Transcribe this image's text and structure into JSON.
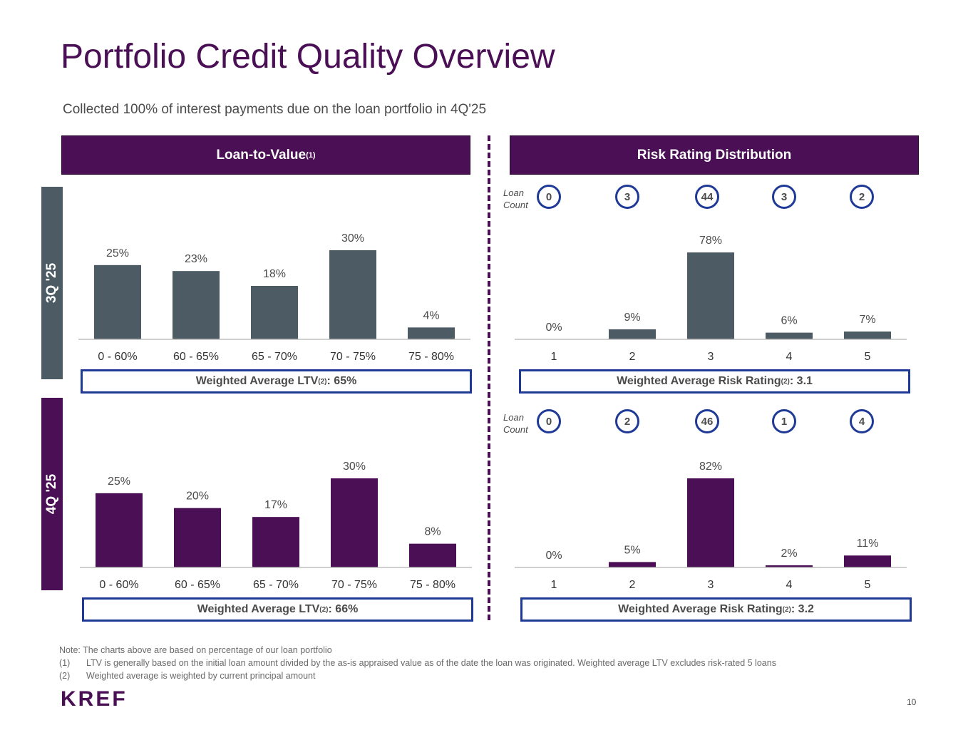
{
  "title": "Portfolio Credit Quality Overview",
  "subtitle": "Collected 100% of interest payments due on the loan portfolio in 4Q'25",
  "headers": {
    "ltv": {
      "text": "Loan-to-Value",
      "sup": "(1)"
    },
    "risk": {
      "text": "Risk Rating Distribution"
    }
  },
  "periods": {
    "q3": "3Q '25",
    "q4": "4Q '25"
  },
  "colors": {
    "brand": "#4a0f55",
    "q3_bar": "#4d5b65",
    "q4_bar": "#4a0f55",
    "box_border": "#1e3a96"
  },
  "loan_count_label": {
    "line1": "Loan",
    "line2": "Count"
  },
  "loan_counts": {
    "q3": [
      "0",
      "3",
      "44",
      "3",
      "2"
    ],
    "q4": [
      "0",
      "2",
      "46",
      "1",
      "4"
    ]
  },
  "weighted": {
    "ltv_q3": {
      "pre": "Weighted Average LTV",
      "sup": "(2)",
      "post": ": 65%"
    },
    "ltv_q4": {
      "pre": "Weighted Average LTV",
      "sup": "(2)",
      "post": ": 66%"
    },
    "risk_q3": {
      "pre": "Weighted Average Risk Rating",
      "sup": "(2)",
      "post": ": 3.1"
    },
    "risk_q4": {
      "pre": "Weighted Average Risk Rating",
      "sup": "(2)",
      "post": ": 3.2"
    }
  },
  "chart_data": [
    {
      "id": "ltv_q3",
      "type": "bar",
      "title": "Loan-to-Value 3Q '25",
      "categories": [
        "0 - 60%",
        "60 - 65%",
        "65 - 70%",
        "70 - 75%",
        "75 - 80%"
      ],
      "values": [
        25,
        23,
        18,
        30,
        4
      ],
      "labels": [
        "25%",
        "23%",
        "18%",
        "30%",
        "4%"
      ],
      "unit": "%",
      "ylim": [
        0,
        30
      ]
    },
    {
      "id": "risk_q3",
      "type": "bar",
      "title": "Risk Rating Distribution 3Q '25",
      "categories": [
        "1",
        "2",
        "3",
        "4",
        "5"
      ],
      "values": [
        0,
        9,
        78,
        6,
        7
      ],
      "labels": [
        "0%",
        "9%",
        "78%",
        "6%",
        "7%"
      ],
      "unit": "%",
      "ylim": [
        0,
        80
      ]
    },
    {
      "id": "ltv_q4",
      "type": "bar",
      "title": "Loan-to-Value 4Q '25",
      "categories": [
        "0 - 60%",
        "60 - 65%",
        "65 - 70%",
        "70 - 75%",
        "75 - 80%"
      ],
      "values": [
        25,
        20,
        17,
        30,
        8
      ],
      "labels": [
        "25%",
        "20%",
        "17%",
        "30%",
        "8%"
      ],
      "unit": "%",
      "ylim": [
        0,
        30
      ]
    },
    {
      "id": "risk_q4",
      "type": "bar",
      "title": "Risk Rating Distribution 4Q '25",
      "categories": [
        "1",
        "2",
        "3",
        "4",
        "5"
      ],
      "values": [
        0,
        5,
        82,
        2,
        11
      ],
      "labels": [
        "0%",
        "5%",
        "82%",
        "2%",
        "11%"
      ],
      "unit": "%",
      "ylim": [
        0,
        82
      ]
    }
  ],
  "notes": {
    "note": "Note: The charts above are based on percentage of our loan portfolio",
    "items": [
      {
        "key": "(1)",
        "text": "LTV is generally based on the initial loan amount divided by the as-is appraised value as of the date the loan was originated. Weighted average LTV excludes risk-rated 5 loans"
      },
      {
        "key": "(2)",
        "text": "Weighted average is weighted by current principal amount"
      }
    ]
  },
  "logo": "KREF",
  "page_number": "10"
}
